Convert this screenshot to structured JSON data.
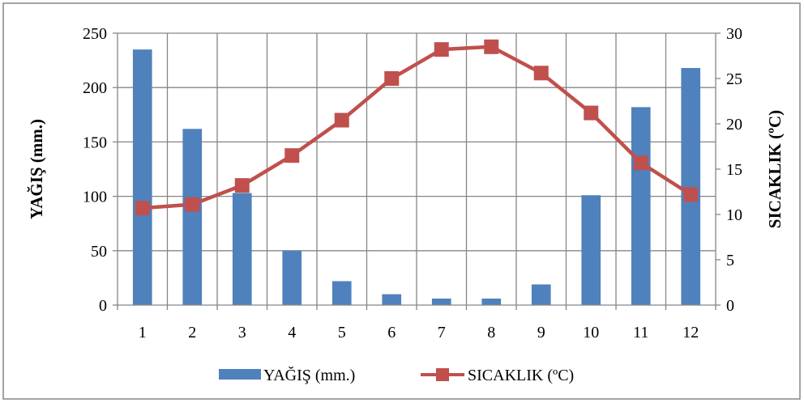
{
  "colors": {
    "bar": "#4F81BD",
    "line": "#C0504D",
    "grid": "#868686",
    "frame": "#868686"
  },
  "chart_data": {
    "type": "bar",
    "categories": [
      "1",
      "2",
      "3",
      "4",
      "5",
      "6",
      "7",
      "8",
      "9",
      "10",
      "11",
      "12"
    ],
    "series": [
      {
        "name": "YAĞIŞ (mm.)",
        "type": "bar",
        "axis": "left",
        "values": [
          235,
          162,
          103,
          50,
          22,
          10,
          6,
          6,
          19,
          101,
          182,
          218
        ]
      },
      {
        "name": "SICAKLIK (ºC)",
        "type": "line",
        "axis": "right",
        "values": [
          10.7,
          11.1,
          13.2,
          16.5,
          20.4,
          25.0,
          28.2,
          28.5,
          25.6,
          21.2,
          15.7,
          12.2
        ]
      }
    ],
    "ylabel": "YAĞIŞ (mm.)",
    "y2label": "SICAKLIK (ºC)",
    "ylim": [
      0,
      250
    ],
    "y2lim": [
      0,
      30
    ],
    "yticks": [
      "0",
      "50",
      "100",
      "150",
      "200",
      "250"
    ],
    "y2ticks": [
      "0",
      "5",
      "10",
      "15",
      "20",
      "25",
      "30"
    ],
    "grid": true,
    "legend": "bottom"
  }
}
